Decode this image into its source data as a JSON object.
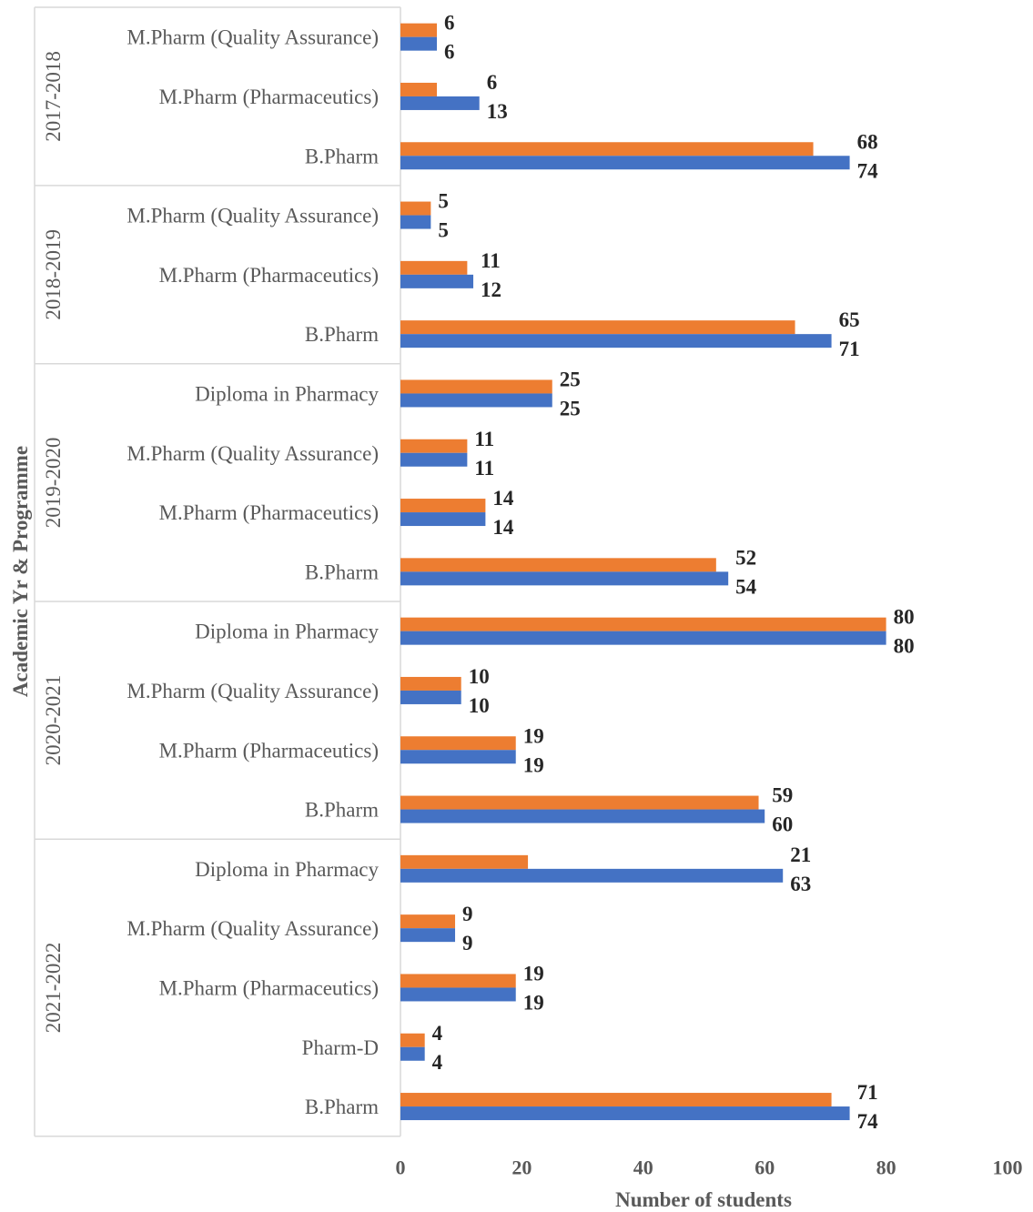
{
  "chart_data": {
    "type": "bar",
    "orientation": "horizontal",
    "xlabel": "Number of students",
    "ylabel": "Academic Yr & Programme",
    "xlim": [
      0,
      100
    ],
    "xticks": [
      0,
      20,
      40,
      60,
      80,
      100
    ],
    "grid": false,
    "legend": "none",
    "colors": {
      "series_a": "#ED7D31",
      "series_b": "#4472C4"
    },
    "groups": [
      {
        "year": "2017-2018",
        "rows": [
          {
            "label": "M.Pharm (Quality Assurance)",
            "a": 6,
            "b": 6
          },
          {
            "label": "M.Pharm (Pharmaceutics)",
            "a": 6,
            "b": 13
          },
          {
            "label": "B.Pharm",
            "a": 68,
            "b": 74
          }
        ]
      },
      {
        "year": "2018-2019",
        "rows": [
          {
            "label": "M.Pharm (Quality Assurance)",
            "a": 5,
            "b": 5
          },
          {
            "label": "M.Pharm (Pharmaceutics)",
            "a": 11,
            "b": 12
          },
          {
            "label": "B.Pharm",
            "a": 65,
            "b": 71
          }
        ]
      },
      {
        "year": "2019-2020",
        "rows": [
          {
            "label": "Diploma in Pharmacy",
            "a": 25,
            "b": 25
          },
          {
            "label": "M.Pharm (Quality Assurance)",
            "a": 11,
            "b": 11
          },
          {
            "label": "M.Pharm (Pharmaceutics)",
            "a": 14,
            "b": 14
          },
          {
            "label": "B.Pharm",
            "a": 52,
            "b": 54
          }
        ]
      },
      {
        "year": "2020-2021",
        "rows": [
          {
            "label": "Diploma in Pharmacy",
            "a": 80,
            "b": 80
          },
          {
            "label": "M.Pharm (Quality Assurance)",
            "a": 10,
            "b": 10
          },
          {
            "label": "M.Pharm (Pharmaceutics)",
            "a": 19,
            "b": 19
          },
          {
            "label": "B.Pharm",
            "a": 59,
            "b": 60
          }
        ]
      },
      {
        "year": "2021-2022",
        "rows": [
          {
            "label": "Diploma in Pharmacy",
            "a": 21,
            "b": 63
          },
          {
            "label": "M.Pharm (Quality Assurance)",
            "a": 9,
            "b": 9
          },
          {
            "label": "M.Pharm (Pharmaceutics)",
            "a": 19,
            "b": 19
          },
          {
            "label": "Pharm-D",
            "a": 4,
            "b": 4
          },
          {
            "label": "B.Pharm",
            "a": 71,
            "b": 74
          }
        ]
      }
    ]
  }
}
